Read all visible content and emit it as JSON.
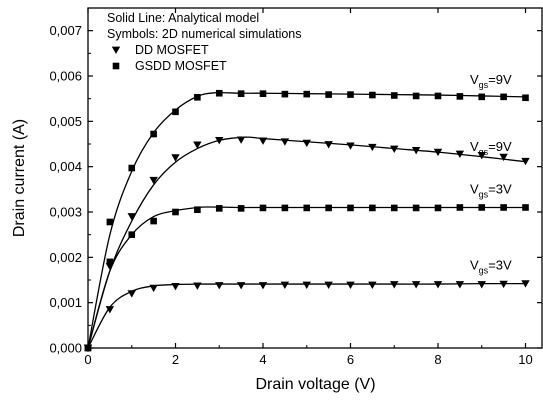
{
  "chart_data": {
    "type": "scatter",
    "xlabel": "Drain voltage (V)",
    "ylabel": "Drain current (A)",
    "xlim": [
      0,
      10.4
    ],
    "ylim": [
      0,
      0.0075
    ],
    "x_ticks": [
      {
        "value": 0,
        "label": "0"
      },
      {
        "value": 2,
        "label": "2"
      },
      {
        "value": 4,
        "label": "4"
      },
      {
        "value": 6,
        "label": "6"
      },
      {
        "value": 8,
        "label": "8"
      },
      {
        "value": 10,
        "label": "10"
      }
    ],
    "y_ticks": [
      {
        "value": 0,
        "label": "0,000"
      },
      {
        "value": 0.001,
        "label": "0,001"
      },
      {
        "value": 0.002,
        "label": "0,002"
      },
      {
        "value": 0.003,
        "label": "0,003"
      },
      {
        "value": 0.004,
        "label": "0,004"
      },
      {
        "value": 0.005,
        "label": "0,005"
      },
      {
        "value": 0.006,
        "label": "0,006"
      },
      {
        "value": 0.007,
        "label": "0,007"
      }
    ],
    "grid": false,
    "legend": {
      "position": "top-left",
      "lines": [
        "Solid Line: Analytical model",
        "Symbols: 2D numerical simulations"
      ],
      "entries": [
        {
          "label": "DD MOSFET",
          "marker": "triangle-down"
        },
        {
          "label": "GSDD MOSFET",
          "marker": "square"
        }
      ]
    },
    "series": [
      {
        "label": {
          "main": "V",
          "sub": "gs",
          "suffix": "=9V"
        },
        "marker": "square",
        "x": [
          0,
          0.5,
          1,
          1.5,
          2,
          2.5,
          3,
          3.5,
          4,
          4.5,
          5,
          5.5,
          6,
          6.5,
          7,
          7.5,
          8,
          8.5,
          9,
          9.5,
          10
        ],
        "y": [
          0,
          0.00278,
          0.00397,
          0.00472,
          0.00521,
          0.00553,
          0.00562,
          0.00561,
          0.00561,
          0.0056,
          0.0056,
          0.00559,
          0.00559,
          0.00558,
          0.00557,
          0.00556,
          0.00556,
          0.00555,
          0.00554,
          0.00554,
          0.00552
        ],
        "model_x": [
          0,
          0.5,
          1,
          1.5,
          2,
          2.5,
          2.9,
          3.5,
          4,
          5,
          6,
          7,
          8,
          9,
          10
        ],
        "model_y": [
          0,
          0.0025,
          0.0039,
          0.00475,
          0.00525,
          0.00555,
          0.00563,
          0.00562,
          0.00562,
          0.00561,
          0.0056,
          0.00559,
          0.00558,
          0.00556,
          0.00554
        ]
      },
      {
        "label": {
          "main": "V",
          "sub": "gs",
          "suffix": "=9V"
        },
        "marker": "triangle-down",
        "x": [
          0,
          0.5,
          1,
          1.5,
          2,
          2.5,
          3,
          3.5,
          4,
          4.5,
          5,
          5.5,
          6,
          6.5,
          7,
          7.5,
          8,
          8.5,
          9,
          9.5,
          10
        ],
        "y": [
          0,
          0.0018,
          0.0029,
          0.0037,
          0.0042,
          0.00448,
          0.00458,
          0.00459,
          0.00457,
          0.00455,
          0.00452,
          0.00449,
          0.00446,
          0.00443,
          0.00439,
          0.00436,
          0.00432,
          0.00428,
          0.00425,
          0.00421,
          0.00412
        ],
        "model_x": [
          0,
          0.5,
          1,
          1.5,
          2,
          2.5,
          3,
          3.6,
          4,
          5,
          6,
          7,
          8,
          9,
          10
        ],
        "model_y": [
          0,
          0.0017,
          0.0028,
          0.0036,
          0.0041,
          0.0044,
          0.00458,
          0.00465,
          0.00462,
          0.00455,
          0.00448,
          0.0044,
          0.00432,
          0.00422,
          0.00411
        ]
      },
      {
        "label": {
          "main": "V",
          "sub": "gs",
          "suffix": "=3V"
        },
        "marker": "square",
        "x": [
          0,
          0.5,
          1,
          1.5,
          2,
          2.5,
          3,
          3.5,
          4,
          4.5,
          5,
          5.5,
          6,
          6.5,
          7,
          7.5,
          8,
          8.5,
          9,
          9.5,
          10
        ],
        "y": [
          0,
          0.0019,
          0.0025,
          0.0028,
          0.003,
          0.00305,
          0.00308,
          0.00308,
          0.00309,
          0.00309,
          0.00309,
          0.00309,
          0.00309,
          0.00309,
          0.00309,
          0.00309,
          0.00309,
          0.0031,
          0.0031,
          0.0031,
          0.0031
        ],
        "model_x": [
          0,
          0.5,
          1,
          1.5,
          2,
          2.5,
          2.8,
          3.5,
          4,
          5,
          6,
          7,
          8,
          9,
          10
        ],
        "model_y": [
          0,
          0.0017,
          0.0025,
          0.0029,
          0.00303,
          0.0031,
          0.00311,
          0.0031,
          0.0031,
          0.0031,
          0.0031,
          0.0031,
          0.0031,
          0.0031,
          0.0031
        ]
      },
      {
        "label": {
          "main": "V",
          "sub": "gs",
          "suffix": "=3V"
        },
        "marker": "triangle-down",
        "x": [
          0,
          0.5,
          1,
          1.5,
          2,
          2.5,
          3,
          3.5,
          4,
          4.5,
          5,
          5.5,
          6,
          6.5,
          7,
          7.5,
          8,
          8.5,
          9,
          9.5,
          10
        ],
        "y": [
          0,
          0.00085,
          0.0012,
          0.00132,
          0.00136,
          0.00137,
          0.00138,
          0.00138,
          0.00138,
          0.00139,
          0.00139,
          0.00139,
          0.00139,
          0.00139,
          0.0014,
          0.0014,
          0.0014,
          0.0014,
          0.0014,
          0.00141,
          0.00142
        ],
        "model_x": [
          0,
          0.5,
          1,
          1.5,
          2,
          2.5,
          3,
          4,
          5,
          6,
          7,
          8,
          9,
          10
        ],
        "model_y": [
          0,
          0.0009,
          0.00125,
          0.00137,
          0.0014,
          0.00141,
          0.00141,
          0.00141,
          0.00141,
          0.00141,
          0.00141,
          0.00141,
          0.00142,
          0.00142
        ]
      }
    ]
  }
}
